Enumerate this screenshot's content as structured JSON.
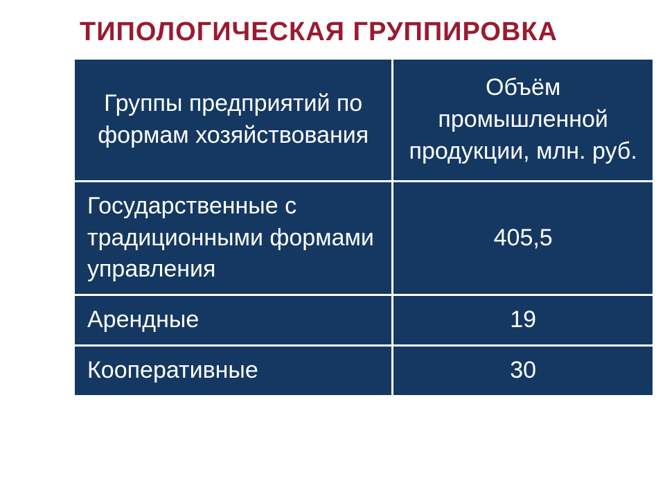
{
  "title": "ТИПОЛОГИЧЕСКАЯ ГРУППИРОВКА",
  "table": {
    "type": "table",
    "background_color": "#143861",
    "text_color": "#ffffff",
    "border_color": "#ffffff",
    "title_color": "#9a1b30",
    "font_size": 34,
    "title_fontsize": 38,
    "columns": [
      {
        "label": "Группы предприятий по формам хозяйствования",
        "width_pct": 55,
        "align": "left"
      },
      {
        "label": "Объём промышленной продукции, млн. руб.",
        "width_pct": 45,
        "align": "center"
      }
    ],
    "rows": [
      {
        "label": "Государственные с традиционными формами управления",
        "value": "405,5"
      },
      {
        "label": "Арендные",
        "value": "19"
      },
      {
        "label": "Кооперативные",
        "value": "30"
      }
    ]
  }
}
